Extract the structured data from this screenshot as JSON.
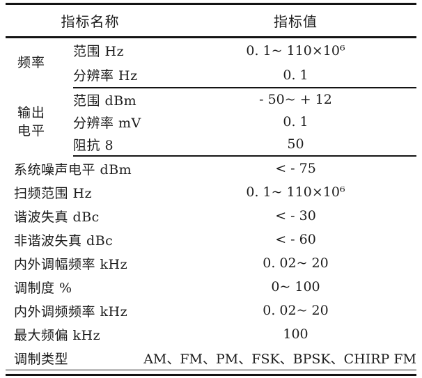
{
  "table": {
    "header": {
      "name_col": "指标名称",
      "value_col": "指标值"
    },
    "groups": [
      {
        "label": "频率",
        "rows": [
          {
            "name": "范围 Hz",
            "value": "0. 1~ 110×10⁶"
          },
          {
            "name": "分辨率 Hz",
            "value": "0. 1"
          }
        ]
      },
      {
        "label": "输出电平",
        "rows": [
          {
            "name": "范围 dBm",
            "value": "- 50~ + 12"
          },
          {
            "name": "分辨率 mV",
            "value": "0. 1"
          },
          {
            "name": "阻抗 8",
            "value": "50"
          }
        ]
      }
    ],
    "rows": [
      {
        "name": "系统噪声电平 dBm",
        "value": "< - 75"
      },
      {
        "name": "扫频范围 Hz",
        "value": "0. 1~ 110×10⁶"
      },
      {
        "name": "谐波失真 dBc",
        "value": "< - 30"
      },
      {
        "name": "非谐波失真 dBc",
        "value": "< - 60"
      },
      {
        "name": "内外调幅频率 kHz",
        "value": "0. 02~ 20"
      },
      {
        "name": "调制度 %",
        "value": "0~ 100"
      },
      {
        "name": "内外调频频率 kHz",
        "value": "0. 02~ 20"
      },
      {
        "name": "最大频偏 kHz",
        "value": "100"
      },
      {
        "name": "调制类型",
        "value": "AM、FM、PM、FSK、BPSK、CHIRP FM"
      }
    ]
  }
}
